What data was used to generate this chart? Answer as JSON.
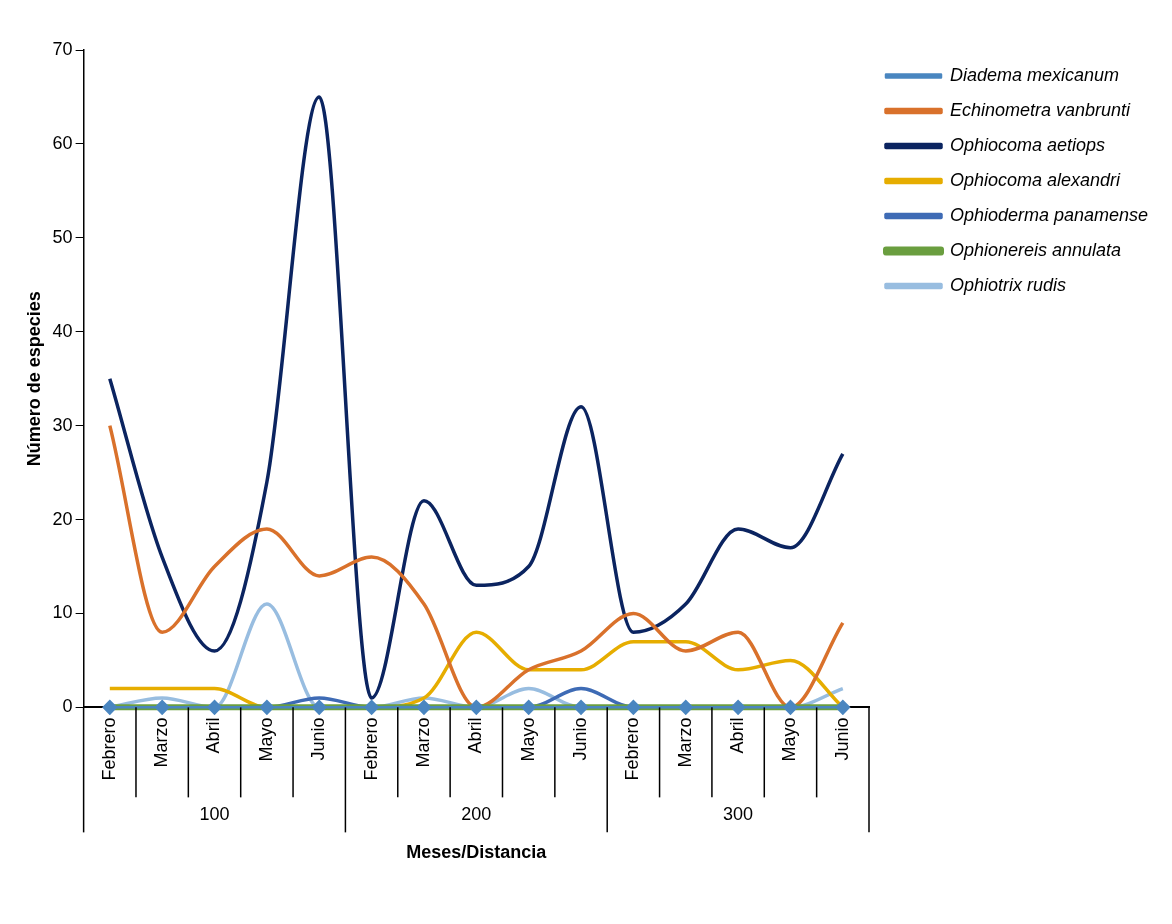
{
  "chart_data": {
    "type": "line",
    "xlabel": "Meses/Distancia",
    "ylabel": "Número de especies",
    "categories": [
      "Febrero",
      "Marzo",
      "Abril",
      "Mayo",
      "Junio",
      "Febrero",
      "Marzo",
      "Abril",
      "Mayo",
      "Junio",
      "Febrero",
      "Marzo",
      "Abril",
      "Mayo",
      "Junio"
    ],
    "annotations": [
      "100",
      "200",
      "300"
    ],
    "ylim": [
      0,
      70
    ],
    "yticks": [
      0,
      10,
      20,
      30,
      40,
      50,
      60,
      70
    ],
    "grid": false,
    "legend": "top right",
    "series": [
      {
        "name": "Diadema mexicanum",
        "color": "#4a86c0",
        "marker": "diamond",
        "values": [
          0,
          0,
          0,
          0,
          0,
          0,
          0,
          0,
          0,
          0,
          0,
          0,
          0,
          0,
          0
        ]
      },
      {
        "name": "Echinometra vanbrunti",
        "color": "#d9712b",
        "values": [
          30,
          8,
          15,
          19,
          14,
          16,
          11,
          0,
          4,
          6,
          10,
          6,
          8,
          0,
          9
        ]
      },
      {
        "name": "Ophiocoma aetiops",
        "color": "#0b2460",
        "values": [
          35,
          16,
          6,
          24,
          65,
          1,
          22,
          13,
          15,
          32,
          8,
          11,
          19,
          17,
          27
        ]
      },
      {
        "name": "Ophiocoma alexandri",
        "color": "#e6ad00",
        "values": [
          2,
          2,
          2,
          0,
          0,
          0,
          1,
          8,
          4,
          4,
          7,
          7,
          4,
          5,
          0
        ]
      },
      {
        "name": "Ophioderma panamense",
        "color": "#3e6bb5",
        "values": [
          0,
          0,
          0,
          0,
          1,
          0,
          0,
          0,
          0,
          2,
          0,
          0,
          0,
          0,
          0
        ]
      },
      {
        "name": "Ophionereis annulata",
        "color": "#6a9e3f",
        "values": [
          0,
          0,
          0,
          0,
          0,
          0,
          0,
          0,
          0,
          0,
          0,
          0,
          0,
          0,
          0
        ]
      },
      {
        "name": "Ophiotrix rudis",
        "color": "#98bde0",
        "values": [
          0,
          1,
          0,
          11,
          0,
          0,
          1,
          0,
          2,
          0,
          0,
          0,
          0,
          0,
          2
        ]
      }
    ]
  }
}
